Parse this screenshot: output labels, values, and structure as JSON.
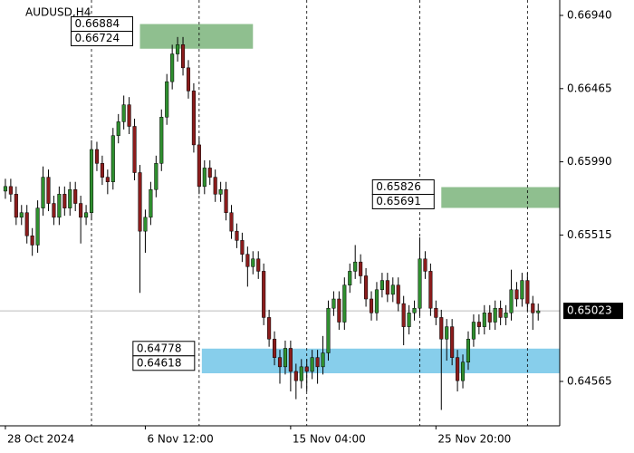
{
  "chart_data": {
    "type": "candlestick",
    "title": "AUDUSD,H4",
    "open": [
      0.658,
      0.6583,
      0.6578,
      0.6563,
      0.6566,
      0.6551,
      0.6545,
      0.6569,
      0.6589,
      0.6572,
      0.6563,
      0.6578,
      0.6569,
      0.6581,
      0.6572,
      0.6563,
      0.6566,
      0.6607,
      0.6598,
      0.6589,
      0.6586,
      0.6616,
      0.6625,
      0.6636,
      0.6622,
      0.6592,
      0.6554,
      0.6563,
      0.6581,
      0.6598,
      0.6628,
      0.6651,
      0.6669,
      0.6675,
      0.666,
      0.6645,
      0.661,
      0.6583,
      0.6595,
      0.6589,
      0.6578,
      0.6581,
      0.6566,
      0.6554,
      0.6548,
      0.6539,
      0.6531,
      0.6536,
      0.6528,
      0.6498,
      0.6484,
      0.6472,
      0.6466,
      0.6478,
      0.6463,
      0.6457,
      0.6466,
      0.6463,
      0.6472,
      0.6466,
      0.6475,
      0.6504,
      0.651,
      0.6495,
      0.6519,
      0.6528,
      0.6534,
      0.6525,
      0.651,
      0.6501,
      0.6516,
      0.6522,
      0.6513,
      0.6519,
      0.6507,
      0.6492,
      0.6501,
      0.6504,
      0.6536,
      0.6528,
      0.6504,
      0.6498,
      0.6484,
      0.6492,
      0.6472,
      0.6457,
      0.6469,
      0.6484,
      0.6495,
      0.6492,
      0.6501,
      0.6495,
      0.6504,
      0.6498,
      0.6501,
      0.6516,
      0.651,
      0.6522,
      0.6507,
      0.6501
    ],
    "high": [
      0.6588,
      0.6588,
      0.6583,
      0.6571,
      0.6571,
      0.6556,
      0.6574,
      0.6596,
      0.6594,
      0.6577,
      0.6583,
      0.6583,
      0.6586,
      0.6586,
      0.6577,
      0.6571,
      0.6613,
      0.6612,
      0.6603,
      0.6594,
      0.6621,
      0.663,
      0.6642,
      0.6641,
      0.6627,
      0.6597,
      0.6568,
      0.6586,
      0.6603,
      0.6633,
      0.6656,
      0.6675,
      0.668,
      0.668,
      0.6665,
      0.665,
      0.6615,
      0.66,
      0.66,
      0.6594,
      0.6586,
      0.6586,
      0.6571,
      0.6559,
      0.6553,
      0.6544,
      0.6541,
      0.6541,
      0.6533,
      0.6503,
      0.6489,
      0.6477,
      0.6483,
      0.6483,
      0.6468,
      0.6471,
      0.6471,
      0.6477,
      0.6477,
      0.6486,
      0.6509,
      0.6515,
      0.6515,
      0.6524,
      0.6533,
      0.6545,
      0.6539,
      0.653,
      0.6515,
      0.6521,
      0.6527,
      0.6527,
      0.6524,
      0.6524,
      0.6512,
      0.6506,
      0.6509,
      0.655,
      0.6541,
      0.6533,
      0.6509,
      0.6503,
      0.6497,
      0.6497,
      0.6477,
      0.6474,
      0.6489,
      0.65,
      0.65,
      0.6506,
      0.6506,
      0.6509,
      0.6509,
      0.6506,
      0.6529,
      0.6521,
      0.6527,
      0.6527,
      0.6512,
      0.6507
    ],
    "low": [
      0.6575,
      0.6573,
      0.6558,
      0.6558,
      0.6546,
      0.6538,
      0.654,
      0.6564,
      0.6567,
      0.6558,
      0.6558,
      0.6564,
      0.6564,
      0.6567,
      0.6546,
      0.6558,
      0.6561,
      0.6593,
      0.6584,
      0.6578,
      0.6581,
      0.6611,
      0.662,
      0.6617,
      0.6587,
      0.6514,
      0.654,
      0.6558,
      0.6576,
      0.6593,
      0.6623,
      0.6646,
      0.6664,
      0.6655,
      0.664,
      0.6605,
      0.6578,
      0.6578,
      0.6584,
      0.6573,
      0.6573,
      0.6561,
      0.6549,
      0.6543,
      0.6534,
      0.6518,
      0.6526,
      0.6523,
      0.6493,
      0.6479,
      0.6467,
      0.6455,
      0.6461,
      0.645,
      0.6445,
      0.6452,
      0.645,
      0.6458,
      0.6455,
      0.6461,
      0.647,
      0.6499,
      0.649,
      0.649,
      0.6514,
      0.6523,
      0.652,
      0.6505,
      0.6496,
      0.6496,
      0.6511,
      0.6508,
      0.6508,
      0.6502,
      0.648,
      0.6487,
      0.6496,
      0.6499,
      0.6523,
      0.6499,
      0.6493,
      0.6438,
      0.647,
      0.6467,
      0.645,
      0.6452,
      0.6464,
      0.6479,
      0.6487,
      0.6487,
      0.649,
      0.649,
      0.6493,
      0.6493,
      0.6496,
      0.6505,
      0.6505,
      0.6502,
      0.649,
      0.6496
    ],
    "close": [
      0.6583,
      0.6578,
      0.6563,
      0.6566,
      0.6551,
      0.6545,
      0.6569,
      0.6589,
      0.6572,
      0.6563,
      0.6578,
      0.6569,
      0.6581,
      0.6572,
      0.6563,
      0.6566,
      0.6607,
      0.6598,
      0.6589,
      0.6586,
      0.6616,
      0.6625,
      0.6636,
      0.6622,
      0.6592,
      0.6554,
      0.6563,
      0.6581,
      0.6598,
      0.6628,
      0.6651,
      0.6669,
      0.6675,
      0.666,
      0.6645,
      0.661,
      0.6583,
      0.6595,
      0.6589,
      0.6578,
      0.6581,
      0.6566,
      0.6554,
      0.6548,
      0.6539,
      0.6531,
      0.6536,
      0.6528,
      0.6498,
      0.6484,
      0.6472,
      0.6466,
      0.6478,
      0.6463,
      0.6457,
      0.6466,
      0.6463,
      0.6472,
      0.6466,
      0.6475,
      0.6504,
      0.651,
      0.6495,
      0.6519,
      0.6528,
      0.6534,
      0.6525,
      0.651,
      0.6501,
      0.6516,
      0.6522,
      0.6513,
      0.6519,
      0.6507,
      0.6492,
      0.6501,
      0.6504,
      0.6536,
      0.6528,
      0.6504,
      0.6498,
      0.6484,
      0.6492,
      0.6472,
      0.6457,
      0.6469,
      0.6484,
      0.6495,
      0.6492,
      0.6501,
      0.6495,
      0.6504,
      0.6498,
      0.6501,
      0.6516,
      0.651,
      0.6522,
      0.6507,
      0.6501,
      0.65023
    ],
    "bull_color": "#2f8f2f",
    "bear_color": "#8b1c1c",
    "wick_color": "#000000",
    "xlim": [
      -1,
      103
    ],
    "xticks": [
      {
        "value": 0,
        "label": "28 Oct 2024"
      },
      {
        "value": 26,
        "label": "6 Nov 12:00"
      },
      {
        "value": 53,
        "label": "15 Nov 04:00"
      },
      {
        "value": 80,
        "label": "25 Nov 20:00"
      }
    ],
    "vlines": [
      16,
      36,
      56,
      77,
      97
    ],
    "ylim": [
      0.64277,
      0.6704
    ],
    "yticks": [
      {
        "value": 0.6694,
        "label": "0.66940"
      },
      0.66465,
      {
        "value": 0.6599,
        "label": "0.65990"
      },
      0.65515,
      0.64565
    ],
    "current_price": 0.65023,
    "zones": [
      {
        "high": 0.66884,
        "low": 0.66724,
        "x_start": 25,
        "x_end": 46,
        "color": "#8fbf8f"
      },
      {
        "high": 0.65826,
        "low": 0.65691,
        "x_start": 81,
        "x_end": 103,
        "color": "#8fbf8f"
      },
      {
        "high": 0.64778,
        "low": 0.64618,
        "x_start": 36.5,
        "x_end": 103,
        "color": "#87ceeb"
      }
    ]
  }
}
